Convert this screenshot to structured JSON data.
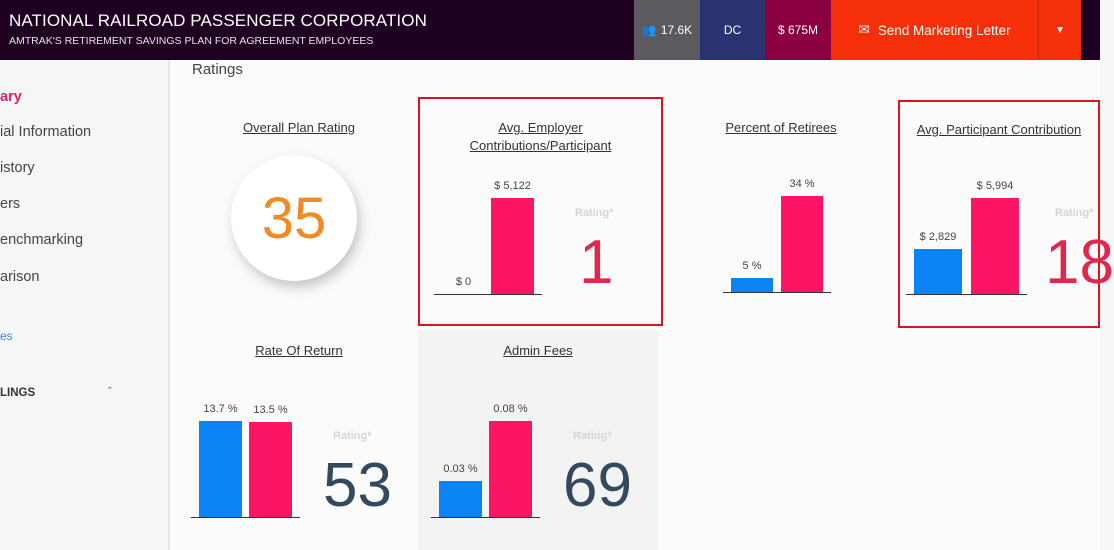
{
  "header": {
    "title": "NATIONAL RAILROAD PASSENGER CORPORATION",
    "subtitle": "AMTRAK'S RETIREMENT SAVINGS PLAN FOR AGREEMENT EMPLOYEES",
    "participants": "17.6K",
    "state": "DC",
    "assets": "$ 675M",
    "send_label": "Send Marketing Letter"
  },
  "colors": {
    "header": "#1f0122",
    "participants_bg": "#5c5a5e",
    "state_bg": "#2b3270",
    "assets_bg": "#8b0040",
    "send_bg": "#f52f0a",
    "plan_bar": "#0a84f5",
    "benchmark_bar": "#fd1565",
    "rating_red": "#e0284f",
    "rating_slate": "#34495e",
    "overall": "#f08a24"
  },
  "sidebar": {
    "items": [
      {
        "label": "ary"
      },
      {
        "label": "ial Information"
      },
      {
        "label": "istory"
      },
      {
        "label": "ers"
      },
      {
        "label": "enchmarking"
      },
      {
        "label": "arison"
      },
      {
        "label": "es"
      },
      {
        "label": "LINGS"
      }
    ]
  },
  "main": {
    "section_title": "Ratings",
    "overall": {
      "title": "Overall Plan Rating",
      "value": "35"
    },
    "rating_label": "Rating*"
  },
  "chart_data": [
    {
      "type": "bar",
      "title": "Avg. Employer Contributions/Participant",
      "values": [
        0,
        5122
      ],
      "labels": [
        "$ 0",
        "$ 5,122"
      ],
      "rating": "1",
      "highlighted": true
    },
    {
      "type": "bar",
      "title": "Percent of Retirees",
      "values": [
        5,
        34
      ],
      "labels": [
        "5 %",
        "34 %"
      ]
    },
    {
      "type": "bar",
      "title": "Avg. Participant Contribution",
      "values": [
        2829,
        5994
      ],
      "labels": [
        "$ 2,829",
        "$ 5,994"
      ],
      "rating": "18",
      "highlighted": true
    },
    {
      "type": "bar",
      "title": "Rate Of Return",
      "values": [
        13.7,
        13.5
      ],
      "labels": [
        "13.7 %",
        "13.5 %"
      ],
      "rating": "53"
    },
    {
      "type": "bar",
      "title": "Admin Fees",
      "values": [
        0.03,
        0.08
      ],
      "labels": [
        "0.03 %",
        "0.08 %"
      ],
      "rating": "69"
    }
  ]
}
